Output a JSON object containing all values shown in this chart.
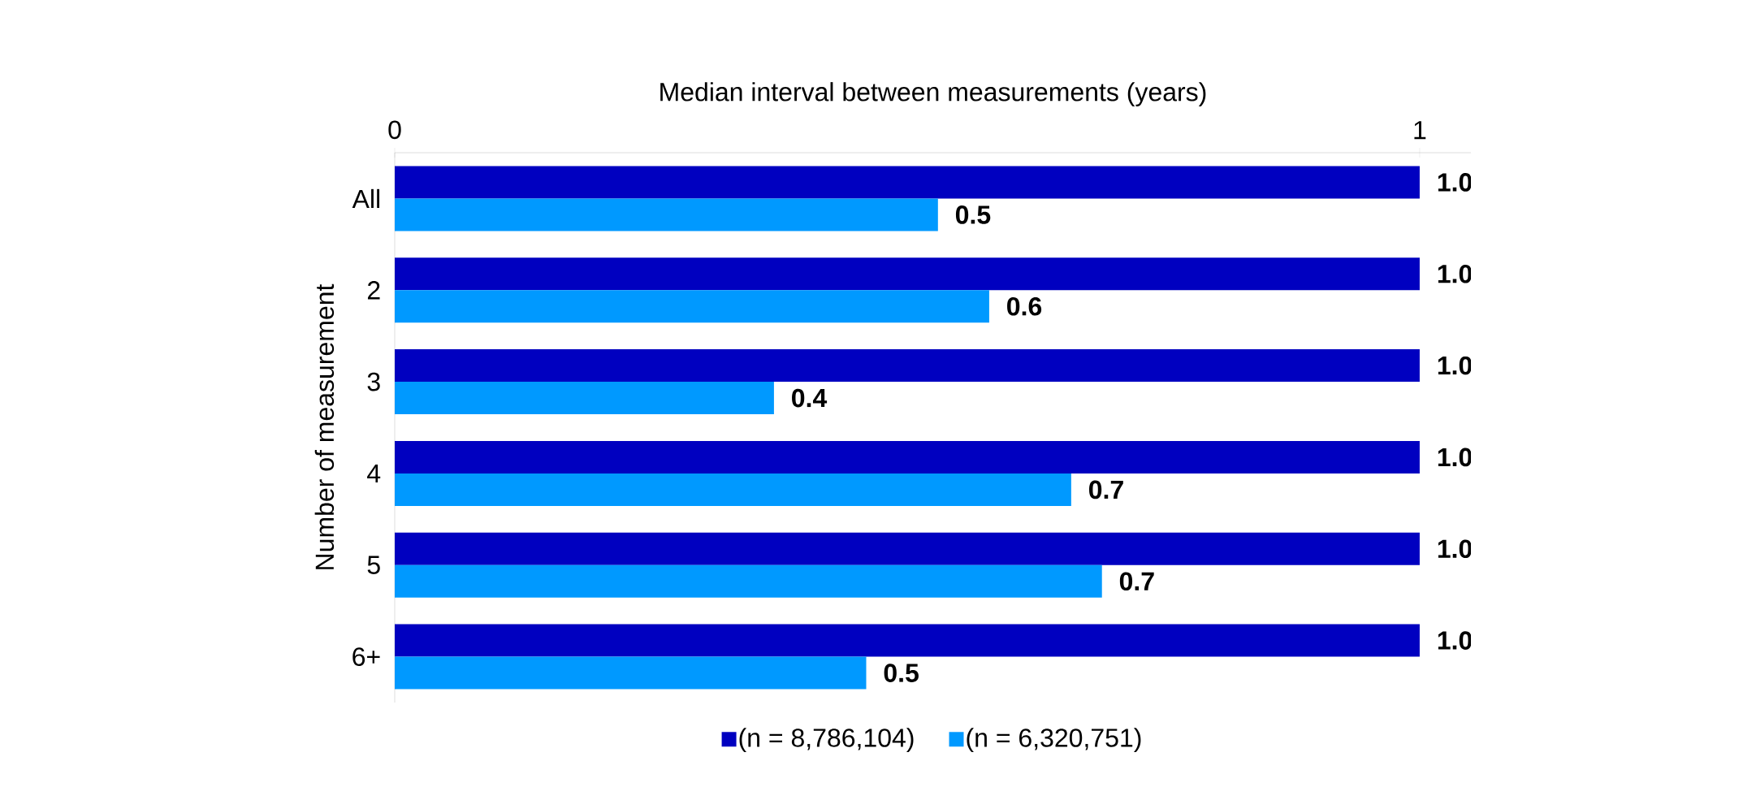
{
  "chart_data": {
    "type": "bar",
    "orientation": "horizontal",
    "xlabel": "Median interval between measurements (years)",
    "ylabel": "Number of measurement",
    "categories": [
      "All",
      "2",
      "3",
      "4",
      "5",
      "6+"
    ],
    "xlim": [
      0,
      1.05
    ],
    "xticks": [
      0,
      1
    ],
    "legend": "bottom",
    "series": [
      {
        "name": "(n = 8,786,104)",
        "color": "#0000c0",
        "values": [
          1.0,
          1.0,
          1.0,
          1.0,
          1.0,
          1.0
        ],
        "value_labels": [
          "1.0",
          "1.0",
          "1.0",
          "1.0",
          "1.0",
          "1.0"
        ]
      },
      {
        "name": "(n = 6,320,751)",
        "color": "#0099ff",
        "values": [
          0.53,
          0.58,
          0.37,
          0.66,
          0.69,
          0.46
        ],
        "value_labels": [
          "0.5",
          "0.6",
          "0.4",
          "0.7",
          "0.7",
          "0.5"
        ]
      }
    ]
  }
}
